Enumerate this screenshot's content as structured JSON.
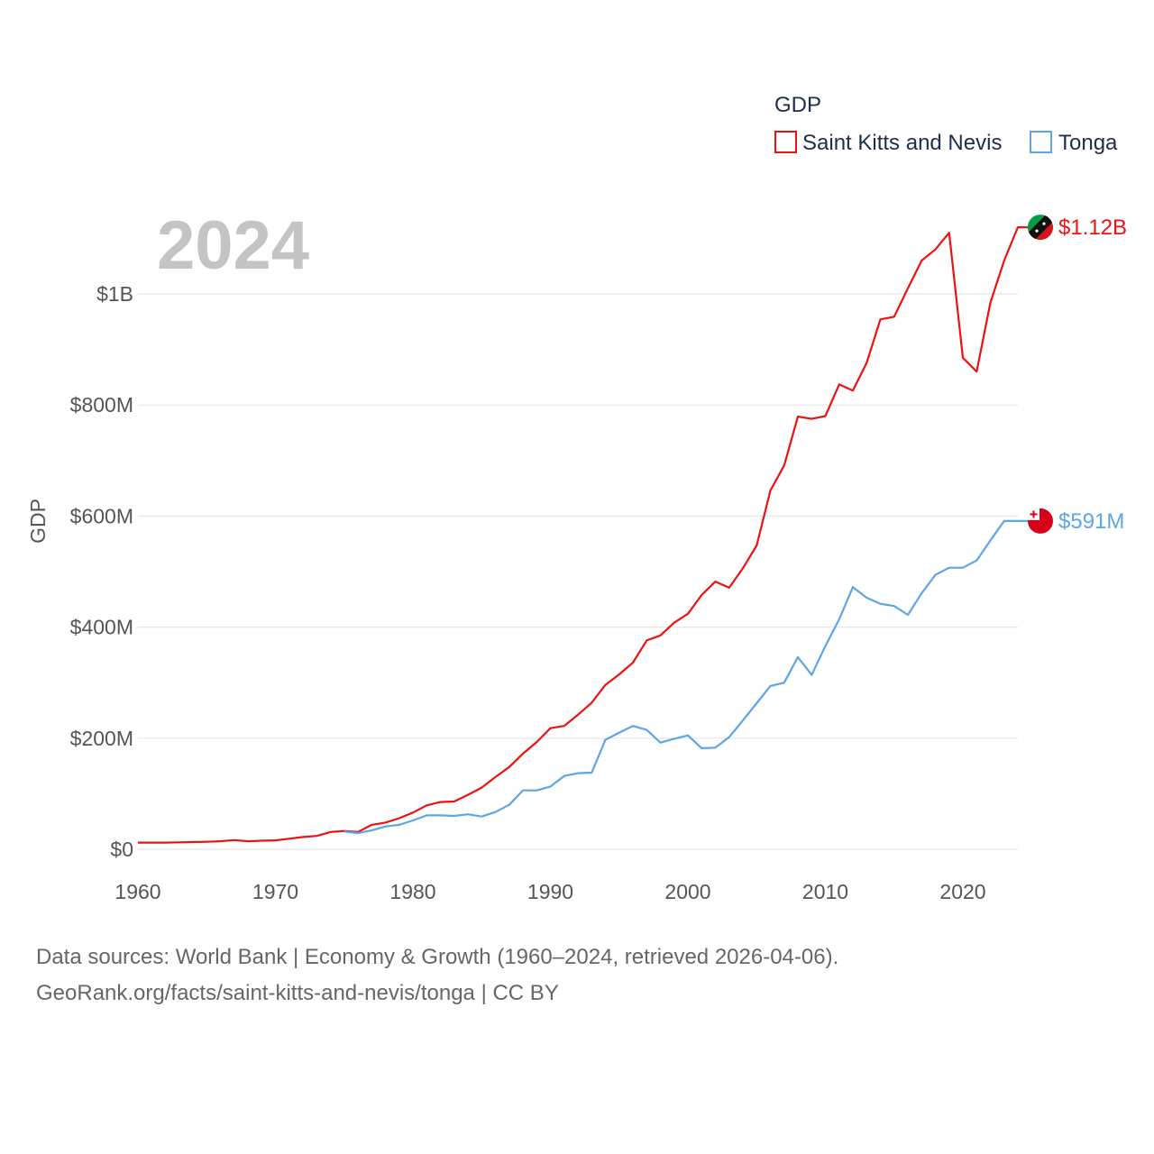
{
  "chart_data": {
    "type": "line",
    "title": "GDP",
    "year_label": "2024",
    "ylabel": "GDP",
    "xlabel": "",
    "xlim": [
      1960,
      2024
    ],
    "ylim": [
      0,
      1200000000
    ],
    "x_ticks": [
      1960,
      1970,
      1980,
      1990,
      2000,
      2010,
      2020
    ],
    "y_ticks": [
      {
        "value": 0,
        "label": "$0"
      },
      {
        "value": 200000000,
        "label": "$200M"
      },
      {
        "value": 400000000,
        "label": "$400M"
      },
      {
        "value": 600000000,
        "label": "$600M"
      },
      {
        "value": 800000000,
        "label": "$800M"
      },
      {
        "value": 1000000000,
        "label": "$1B"
      }
    ],
    "grid": true,
    "legend_position": "top-right",
    "series": [
      {
        "name": "Saint Kitts and Nevis",
        "color": "#ee1111",
        "end_label": "$1.12B",
        "flag": "saint-kitts-and-nevis-flag-icon",
        "x": [
          1960,
          1961,
          1962,
          1963,
          1964,
          1965,
          1966,
          1967,
          1968,
          1969,
          1970,
          1971,
          1972,
          1973,
          1974,
          1975,
          1976,
          1977,
          1978,
          1979,
          1980,
          1981,
          1982,
          1983,
          1984,
          1985,
          1986,
          1987,
          1988,
          1989,
          1990,
          1991,
          1992,
          1993,
          1994,
          1995,
          1996,
          1997,
          1998,
          1999,
          2000,
          2001,
          2002,
          2003,
          2004,
          2005,
          2006,
          2007,
          2008,
          2009,
          2010,
          2011,
          2012,
          2013,
          2014,
          2015,
          2016,
          2017,
          2018,
          2019,
          2020,
          2021,
          2022,
          2023,
          2024
        ],
        "values": [
          12000000,
          12000000,
          12000000,
          12500000,
          13000000,
          13500000,
          14500000,
          16500000,
          14500000,
          15500000,
          16000000,
          19000000,
          22000000,
          24000000,
          31000000,
          33000000,
          31000000,
          44000000,
          48000000,
          56000000,
          66000000,
          79000000,
          85000000,
          86000000,
          98000000,
          111000000,
          130000000,
          148000000,
          172000000,
          193000000,
          218000000,
          222000000,
          242000000,
          264000000,
          296000000,
          315000000,
          336000000,
          376000000,
          385000000,
          408000000,
          424000000,
          458000000,
          482000000,
          471000000,
          506000000,
          547000000,
          646000000,
          691000000,
          779000000,
          775000000,
          780000000,
          837000000,
          826000000,
          876000000,
          954000000,
          959000000,
          1010000000,
          1060000000,
          1080000000,
          1110000000,
          885000000,
          860000000,
          984000000,
          1060000000,
          1120000000
        ]
      },
      {
        "name": "Tonga",
        "color": "#5ca5e6",
        "end_label": "$591M",
        "flag": "tonga-flag-icon",
        "x": [
          1975,
          1976,
          1977,
          1978,
          1979,
          1980,
          1981,
          1982,
          1983,
          1984,
          1985,
          1986,
          1987,
          1988,
          1989,
          1990,
          1991,
          1992,
          1993,
          1994,
          1995,
          1996,
          1997,
          1998,
          1999,
          2000,
          2001,
          2002,
          2003,
          2004,
          2005,
          2006,
          2007,
          2008,
          2009,
          2010,
          2011,
          2012,
          2013,
          2014,
          2015,
          2016,
          2017,
          2018,
          2019,
          2020,
          2021,
          2022,
          2023,
          2024
        ],
        "values": [
          32000000,
          29000000,
          34000000,
          41000000,
          44000000,
          52000000,
          61000000,
          61000000,
          60000000,
          63000000,
          59000000,
          67000000,
          80000000,
          106000000,
          106000000,
          113000000,
          132000000,
          137000000,
          138000000,
          197000000,
          210000000,
          222000000,
          215000000,
          192000000,
          199000000,
          205000000,
          182000000,
          183000000,
          202000000,
          232000000,
          263000000,
          294000000,
          300000000,
          346000000,
          314000000,
          366000000,
          414000000,
          472000000,
          453000000,
          442000000,
          438000000,
          422000000,
          461000000,
          494000000,
          507000000,
          507000000,
          520000000,
          556000000,
          591000000,
          591000000
        ]
      }
    ]
  },
  "source": {
    "line1": "Data sources: World Bank | Economy & Growth (1960–2024, retrieved 2026-04-06).",
    "line2": "GeoRank.org/facts/saint-kitts-and-nevis/tonga | CC BY"
  }
}
